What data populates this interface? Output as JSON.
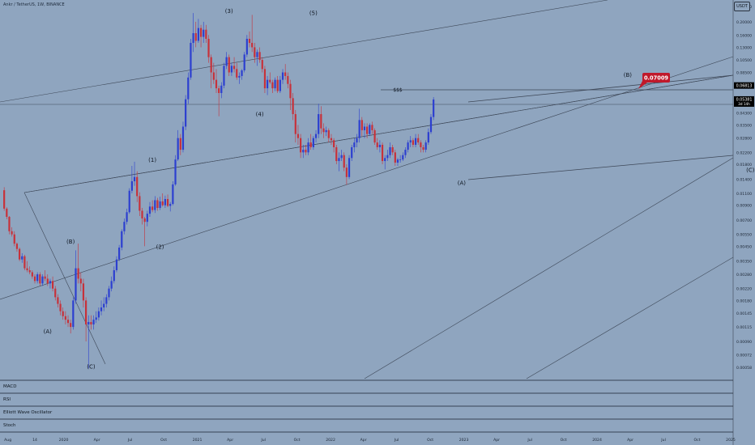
{
  "title": "Ankr / TetherUS, 1W, BINANCE",
  "currency_button": "USDT",
  "panes": [
    "MACD",
    "RSI",
    "Elliott Wave Oscillator",
    "Stoch"
  ],
  "chart_data": {
    "type": "candlestick",
    "symbol": "Ankr / TetherUS",
    "timeframe": "1W",
    "exchange": "BINANCE",
    "y_scale": "log",
    "ylim": [
      0.0005,
      0.27
    ],
    "y_ticks": [
      "0.26000",
      "0.20000",
      "0.16000",
      "0.13000",
      "0.10500",
      "0.08500",
      "0.04300",
      "0.03500",
      "0.02800",
      "0.02200",
      "0.01800",
      "0.01400",
      "0.01100",
      "0.00900",
      "0.00700",
      "0.00550",
      "0.00450",
      "0.00350",
      "0.00280",
      "0.00220",
      "0.00180",
      "0.00145",
      "0.00115",
      "0.00090",
      "0.00072",
      "0.00058"
    ],
    "x_ticks": [
      "Aug",
      "14",
      "2020",
      "Apr",
      "Jul",
      "Oct",
      "2021",
      "Apr",
      "Jul",
      "Oct",
      "2022",
      "Apr",
      "Jul",
      "Oct",
      "2023",
      "Apr",
      "Jul",
      "Oct",
      "2024",
      "Apr",
      "Jul",
      "Oct",
      "2025"
    ],
    "price_labels": [
      {
        "value": 0.06813,
        "text": "0.06813",
        "color": "#000000"
      },
      {
        "value": 0.05381,
        "text": "0.05381",
        "color": "#000000",
        "sub": "3d 14h"
      },
      {
        "value": 0.07009,
        "text": "0.07009",
        "color": "#c0192b"
      }
    ],
    "wave_labels": [
      {
        "text": "(A)",
        "date": "2019-11-18",
        "price": 0.00103
      },
      {
        "text": "(B)",
        "date": "2020-01-20",
        "price": 0.00472
      },
      {
        "text": "(C)",
        "date": "2020-03-16",
        "price": 0.00057
      },
      {
        "text": "(1)",
        "date": "2020-08-31",
        "price": 0.0188
      },
      {
        "text": "(2)",
        "date": "2020-09-21",
        "price": 0.0043
      },
      {
        "text": "(3)",
        "date": "2021-03-29",
        "price": 0.232
      },
      {
        "text": "(4)",
        "date": "2021-06-21",
        "price": 0.0405
      },
      {
        "text": "(5)",
        "date": "2021-11-15",
        "price": 0.225
      },
      {
        "text": "(A)",
        "date": "2022-12-26",
        "price": 0.0127
      },
      {
        "text": "(B)",
        "date": "2024-03-25",
        "price": 0.079
      },
      {
        "text": "(C)",
        "date": "2025-02-24",
        "price": 0.0158
      }
    ],
    "annotations": [
      {
        "text": "$$$",
        "date": "2022-07-04",
        "price": 0.07
      }
    ],
    "candles": [
      [
        0.0116,
        0.0122,
        0.0082,
        0.0085
      ],
      [
        0.0085,
        0.0087,
        0.0071,
        0.0074
      ],
      [
        0.0074,
        0.0075,
        0.0055,
        0.0058
      ],
      [
        0.0058,
        0.0062,
        0.0053,
        0.0055
      ],
      [
        0.0055,
        0.0058,
        0.0045,
        0.0047
      ],
      [
        0.0047,
        0.0048,
        0.0041,
        0.0043
      ],
      [
        0.0043,
        0.0044,
        0.0035,
        0.0036
      ],
      [
        0.0036,
        0.004,
        0.0034,
        0.0038
      ],
      [
        0.0038,
        0.0039,
        0.003,
        0.0031
      ],
      [
        0.0031,
        0.0035,
        0.0029,
        0.003
      ],
      [
        0.003,
        0.0032,
        0.0028,
        0.0029
      ],
      [
        0.0029,
        0.003,
        0.0026,
        0.0027
      ],
      [
        0.0027,
        0.0028,
        0.0024,
        0.0025
      ],
      [
        0.0025,
        0.0029,
        0.0024,
        0.0028
      ],
      [
        0.0028,
        0.0029,
        0.0023,
        0.0024
      ],
      [
        0.0024,
        0.0028,
        0.0023,
        0.0027
      ],
      [
        0.0027,
        0.003,
        0.0025,
        0.0026
      ],
      [
        0.0026,
        0.0028,
        0.0023,
        0.0024
      ],
      [
        0.0024,
        0.0026,
        0.0022,
        0.0025
      ],
      [
        0.0025,
        0.0027,
        0.0021,
        0.0022
      ],
      [
        0.0022,
        0.0023,
        0.0018,
        0.0019
      ],
      [
        0.0019,
        0.002,
        0.0016,
        0.0017
      ],
      [
        0.0017,
        0.0018,
        0.0014,
        0.0015
      ],
      [
        0.0015,
        0.0016,
        0.0013,
        0.00138
      ],
      [
        0.00138,
        0.0015,
        0.0012,
        0.0013
      ],
      [
        0.0013,
        0.0014,
        0.00115,
        0.00123
      ],
      [
        0.00123,
        0.0013,
        0.00103,
        0.00115
      ],
      [
        0.00115,
        0.0019,
        0.0011,
        0.0018
      ],
      [
        0.0018,
        0.0042,
        0.0017,
        0.0031
      ],
      [
        0.0031,
        0.0047,
        0.0024,
        0.0026
      ],
      [
        0.0026,
        0.0029,
        0.0021,
        0.0024
      ],
      [
        0.0024,
        0.0026,
        0.0016,
        0.0018
      ],
      [
        0.0018,
        0.0019,
        0.0009,
        0.0012
      ],
      [
        0.0012,
        0.0014,
        0.00057,
        0.00125
      ],
      [
        0.00125,
        0.0014,
        0.0011,
        0.0012
      ],
      [
        0.0012,
        0.0014,
        0.0011,
        0.0013
      ],
      [
        0.0013,
        0.0015,
        0.00123,
        0.00135
      ],
      [
        0.00135,
        0.0016,
        0.00128,
        0.0015
      ],
      [
        0.0015,
        0.0018,
        0.0014,
        0.0016
      ],
      [
        0.0016,
        0.0019,
        0.0015,
        0.0017
      ],
      [
        0.0017,
        0.002,
        0.0016,
        0.0019
      ],
      [
        0.0019,
        0.0023,
        0.0018,
        0.0022
      ],
      [
        0.0022,
        0.0027,
        0.0021,
        0.0025
      ],
      [
        0.0025,
        0.0032,
        0.0024,
        0.003
      ],
      [
        0.003,
        0.0038,
        0.0029,
        0.0036
      ],
      [
        0.0036,
        0.0046,
        0.0035,
        0.0044
      ],
      [
        0.0044,
        0.006,
        0.0042,
        0.0058
      ],
      [
        0.0058,
        0.0072,
        0.0055,
        0.0068
      ],
      [
        0.0068,
        0.0085,
        0.0065,
        0.008
      ],
      [
        0.008,
        0.012,
        0.0078,
        0.0115
      ],
      [
        0.0115,
        0.0175,
        0.011,
        0.0135
      ],
      [
        0.0135,
        0.0188,
        0.0125,
        0.0145
      ],
      [
        0.0145,
        0.016,
        0.0095,
        0.0105
      ],
      [
        0.0105,
        0.0112,
        0.0075,
        0.0082
      ],
      [
        0.0082,
        0.0086,
        0.0065,
        0.0072
      ],
      [
        0.0072,
        0.0074,
        0.0045,
        0.0068
      ],
      [
        0.0068,
        0.0082,
        0.0063,
        0.0078
      ],
      [
        0.0078,
        0.0095,
        0.0074,
        0.0088
      ],
      [
        0.0088,
        0.0098,
        0.008,
        0.0083
      ],
      [
        0.0083,
        0.0105,
        0.0079,
        0.0098
      ],
      [
        0.0098,
        0.0102,
        0.0082,
        0.0086
      ],
      [
        0.0086,
        0.0104,
        0.0083,
        0.0096
      ],
      [
        0.0096,
        0.011,
        0.0088,
        0.009
      ],
      [
        0.009,
        0.0106,
        0.0086,
        0.01
      ],
      [
        0.01,
        0.0108,
        0.0087,
        0.0089
      ],
      [
        0.0089,
        0.0095,
        0.0081,
        0.0092
      ],
      [
        0.0092,
        0.0135,
        0.009,
        0.0128
      ],
      [
        0.0128,
        0.021,
        0.0125,
        0.0195
      ],
      [
        0.0195,
        0.032,
        0.019,
        0.028
      ],
      [
        0.028,
        0.03,
        0.021,
        0.023
      ],
      [
        0.023,
        0.037,
        0.022,
        0.034
      ],
      [
        0.034,
        0.058,
        0.032,
        0.054
      ],
      [
        0.054,
        0.085,
        0.05,
        0.078
      ],
      [
        0.078,
        0.15,
        0.075,
        0.14
      ],
      [
        0.14,
        0.232,
        0.12,
        0.165
      ],
      [
        0.165,
        0.2,
        0.13,
        0.145
      ],
      [
        0.145,
        0.21,
        0.14,
        0.18
      ],
      [
        0.18,
        0.19,
        0.13,
        0.155
      ],
      [
        0.155,
        0.2,
        0.14,
        0.175
      ],
      [
        0.175,
        0.19,
        0.14,
        0.15
      ],
      [
        0.15,
        0.16,
        0.1,
        0.11
      ],
      [
        0.11,
        0.115,
        0.065,
        0.085
      ],
      [
        0.085,
        0.1,
        0.07,
        0.075
      ],
      [
        0.075,
        0.09,
        0.06,
        0.065
      ],
      [
        0.065,
        0.068,
        0.0405,
        0.06
      ],
      [
        0.06,
        0.072,
        0.055,
        0.068
      ],
      [
        0.068,
        0.1,
        0.065,
        0.095
      ],
      [
        0.095,
        0.12,
        0.09,
        0.11
      ],
      [
        0.11,
        0.115,
        0.08,
        0.085
      ],
      [
        0.085,
        0.1,
        0.08,
        0.095
      ],
      [
        0.095,
        0.11,
        0.085,
        0.09
      ],
      [
        0.09,
        0.1,
        0.075,
        0.078
      ],
      [
        0.078,
        0.085,
        0.07,
        0.08
      ],
      [
        0.08,
        0.09,
        0.075,
        0.088
      ],
      [
        0.088,
        0.12,
        0.085,
        0.115
      ],
      [
        0.115,
        0.16,
        0.11,
        0.15
      ],
      [
        0.15,
        0.17,
        0.13,
        0.14
      ],
      [
        0.14,
        0.225,
        0.12,
        0.13
      ],
      [
        0.13,
        0.14,
        0.1,
        0.11
      ],
      [
        0.11,
        0.125,
        0.095,
        0.12
      ],
      [
        0.12,
        0.13,
        0.1,
        0.105
      ],
      [
        0.105,
        0.11,
        0.085,
        0.09
      ],
      [
        0.09,
        0.095,
        0.06,
        0.065
      ],
      [
        0.065,
        0.08,
        0.058,
        0.075
      ],
      [
        0.075,
        0.085,
        0.07,
        0.072
      ],
      [
        0.072,
        0.075,
        0.06,
        0.065
      ],
      [
        0.065,
        0.078,
        0.062,
        0.075
      ],
      [
        0.075,
        0.08,
        0.06,
        0.062
      ],
      [
        0.062,
        0.08,
        0.06,
        0.075
      ],
      [
        0.075,
        0.09,
        0.07,
        0.085
      ],
      [
        0.085,
        0.098,
        0.075,
        0.08
      ],
      [
        0.08,
        0.085,
        0.065,
        0.07
      ],
      [
        0.07,
        0.075,
        0.045,
        0.055
      ],
      [
        0.055,
        0.06,
        0.038,
        0.042
      ],
      [
        0.042,
        0.045,
        0.026,
        0.03
      ],
      [
        0.03,
        0.035,
        0.025,
        0.028
      ],
      [
        0.028,
        0.03,
        0.02,
        0.022
      ],
      [
        0.022,
        0.025,
        0.02,
        0.023
      ],
      [
        0.023,
        0.025,
        0.021,
        0.022
      ],
      [
        0.022,
        0.028,
        0.021,
        0.026
      ],
      [
        0.026,
        0.03,
        0.023,
        0.024
      ],
      [
        0.024,
        0.029,
        0.023,
        0.028
      ],
      [
        0.028,
        0.032,
        0.026,
        0.03
      ],
      [
        0.03,
        0.05,
        0.028,
        0.042
      ],
      [
        0.042,
        0.048,
        0.03,
        0.033
      ],
      [
        0.033,
        0.036,
        0.028,
        0.031
      ],
      [
        0.031,
        0.034,
        0.029,
        0.032
      ],
      [
        0.032,
        0.033,
        0.026,
        0.028
      ],
      [
        0.028,
        0.03,
        0.025,
        0.027
      ],
      [
        0.027,
        0.028,
        0.022,
        0.024
      ],
      [
        0.024,
        0.025,
        0.018,
        0.019
      ],
      [
        0.019,
        0.022,
        0.016,
        0.02
      ],
      [
        0.02,
        0.023,
        0.019,
        0.021
      ],
      [
        0.021,
        0.022,
        0.016,
        0.017
      ],
      [
        0.017,
        0.018,
        0.0127,
        0.0145
      ],
      [
        0.0145,
        0.021,
        0.014,
        0.02
      ],
      [
        0.02,
        0.025,
        0.019,
        0.024
      ],
      [
        0.024,
        0.028,
        0.022,
        0.026
      ],
      [
        0.026,
        0.03,
        0.024,
        0.028
      ],
      [
        0.028,
        0.046,
        0.026,
        0.038
      ],
      [
        0.038,
        0.04,
        0.029,
        0.032
      ],
      [
        0.032,
        0.036,
        0.028,
        0.034
      ],
      [
        0.034,
        0.036,
        0.028,
        0.03
      ],
      [
        0.03,
        0.036,
        0.029,
        0.035
      ],
      [
        0.035,
        0.037,
        0.03,
        0.032
      ],
      [
        0.032,
        0.033,
        0.025,
        0.026
      ],
      [
        0.026,
        0.028,
        0.023,
        0.024
      ],
      [
        0.024,
        0.027,
        0.022,
        0.025
      ],
      [
        0.025,
        0.026,
        0.018,
        0.019
      ],
      [
        0.019,
        0.021,
        0.0165,
        0.02
      ],
      [
        0.02,
        0.023,
        0.019,
        0.021
      ],
      [
        0.021,
        0.026,
        0.02,
        0.024
      ],
      [
        0.024,
        0.025,
        0.021,
        0.022
      ],
      [
        0.022,
        0.023,
        0.0175,
        0.0185
      ],
      [
        0.0185,
        0.02,
        0.0175,
        0.0195
      ],
      [
        0.0195,
        0.021,
        0.0185,
        0.0195
      ],
      [
        0.0195,
        0.022,
        0.019,
        0.021
      ],
      [
        0.021,
        0.024,
        0.02,
        0.023
      ],
      [
        0.023,
        0.027,
        0.022,
        0.026
      ],
      [
        0.026,
        0.029,
        0.024,
        0.027
      ],
      [
        0.027,
        0.028,
        0.024,
        0.025
      ],
      [
        0.025,
        0.03,
        0.024,
        0.028
      ],
      [
        0.028,
        0.03,
        0.025,
        0.026
      ],
      [
        0.026,
        0.027,
        0.022,
        0.024
      ],
      [
        0.024,
        0.025,
        0.022,
        0.023
      ],
      [
        0.023,
        0.027,
        0.022,
        0.026
      ],
      [
        0.026,
        0.033,
        0.025,
        0.031
      ],
      [
        0.031,
        0.042,
        0.03,
        0.04
      ],
      [
        0.04,
        0.056,
        0.038,
        0.05381
      ]
    ]
  }
}
